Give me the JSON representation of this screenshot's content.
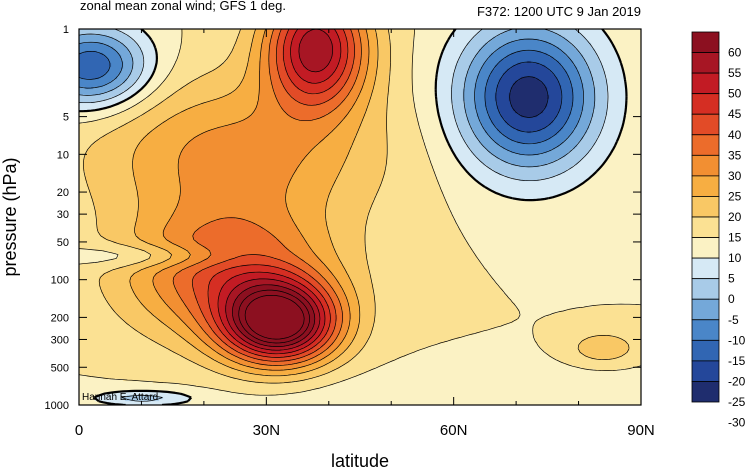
{
  "chart_data": {
    "type": "heatmap",
    "title_left": "zonal mean zonal wind; GFS 1 deg.",
    "title_right": "F372: 1200 UTC 9 Jan 2019",
    "xlabel": "latitude",
    "ylabel": "pressure (hPa)",
    "credit": "Hannah E. Attard",
    "x_range": [
      0,
      90
    ],
    "y_range": [
      1000,
      1
    ],
    "y_scale": "log",
    "x_ticks": [
      {
        "value": 0,
        "label": "0"
      },
      {
        "value": 30,
        "label": "30N"
      },
      {
        "value": 60,
        "label": "60N"
      },
      {
        "value": 90,
        "label": "90N"
      }
    ],
    "y_ticks": [
      {
        "value": 1,
        "label": "1"
      },
      {
        "value": 5,
        "label": "5"
      },
      {
        "value": 10,
        "label": "10"
      },
      {
        "value": 20,
        "label": "20"
      },
      {
        "value": 30,
        "label": "30"
      },
      {
        "value": 50,
        "label": "50"
      },
      {
        "value": 100,
        "label": "100"
      },
      {
        "value": 200,
        "label": "200"
      },
      {
        "value": 300,
        "label": "300"
      },
      {
        "value": 500,
        "label": "500"
      },
      {
        "value": 1000,
        "label": "1000"
      }
    ],
    "colorbar": {
      "levels": [
        -30,
        -25,
        -20,
        -15,
        -10,
        -5,
        0,
        5,
        10,
        15,
        20,
        25,
        30,
        35,
        40,
        45,
        50,
        55,
        60
      ],
      "labels": [
        "60",
        "55",
        "50",
        "45",
        "40",
        "35",
        "30",
        "25",
        "20",
        "15",
        "10",
        "5",
        "0",
        "-5",
        "-10",
        "-15",
        "-20",
        "-25",
        "-30"
      ],
      "colors": [
        "#1f2d6e",
        "#24479a",
        "#3166b3",
        "#4a86c8",
        "#74a8d9",
        "#a8cbe8",
        "#d6e9f5",
        "#fbf2c4",
        "#fbe193",
        "#f9c865",
        "#f7ae42",
        "#f28f32",
        "#ec6c2b",
        "#e24b27",
        "#d52e23",
        "#c21b24",
        "#a71624",
        "#8c1020"
      ]
    },
    "features": [
      {
        "kind": "jet",
        "lat": 32,
        "p": 220,
        "peak": 62
      },
      {
        "kind": "jet",
        "lat": 38,
        "p": 1.4,
        "peak": 48
      },
      {
        "kind": "max",
        "lat": 25,
        "p": 10,
        "peak": 26
      },
      {
        "kind": "min",
        "lat": 72,
        "p": 3.5,
        "peak": -34
      },
      {
        "kind": "min",
        "lat": 2,
        "p": 2,
        "peak": -26
      },
      {
        "kind": "min",
        "lat": 10,
        "p": 65,
        "peak": -3
      },
      {
        "kind": "min",
        "lat": 10,
        "p": 880,
        "peak": -6
      }
    ]
  }
}
